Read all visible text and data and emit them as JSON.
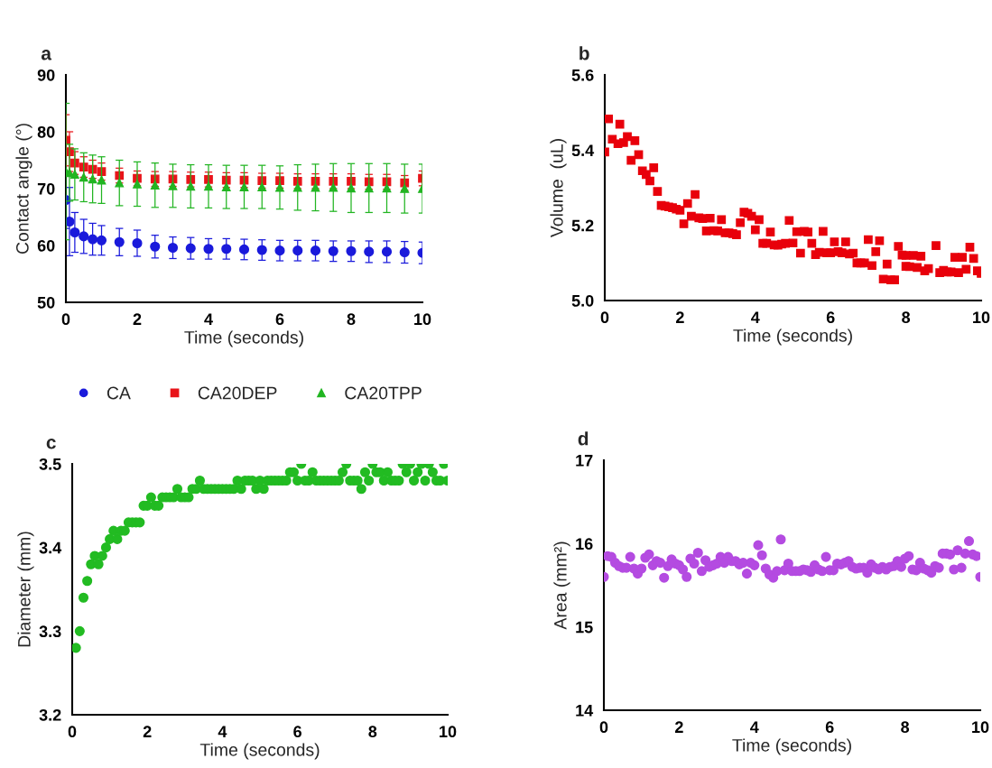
{
  "chart_data": [
    {
      "type": "scatter",
      "title": "a",
      "xlabel": "Time (seconds)",
      "ylabel": "Contact angle (°)",
      "xlim": [
        0,
        10
      ],
      "xticks": [
        0,
        2,
        4,
        6,
        8,
        10
      ],
      "ylim": [
        50,
        90
      ],
      "yticks": [
        50,
        60,
        70,
        80,
        90
      ],
      "grid": false,
      "legend": "bottom",
      "x": [
        0,
        0.1,
        0.25,
        0.5,
        0.75,
        1,
        1.5,
        2,
        2.5,
        3,
        3.5,
        4,
        4.5,
        5,
        5.5,
        6,
        6.5,
        7,
        7.5,
        8,
        8.5,
        9,
        9.5,
        10
      ],
      "series": [
        {
          "name": "CA",
          "color": "#1a1adb",
          "marker": "circle",
          "values": [
            68,
            64.2,
            62.3,
            61.6,
            61.1,
            60.9,
            60.6,
            60.4,
            59.8,
            59.6,
            59.5,
            59.4,
            59.4,
            59.3,
            59.2,
            59.1,
            59.1,
            59.1,
            59.0,
            59.0,
            58.9,
            58.9,
            58.8,
            58.7
          ],
          "errors": [
            5,
            6,
            3.5,
            3,
            2.8,
            2.6,
            2.4,
            2.3,
            2.0,
            1.9,
            1.9,
            1.8,
            1.8,
            1.8,
            1.8,
            1.8,
            1.8,
            1.8,
            1.8,
            1.8,
            1.9,
            1.9,
            1.9,
            1.9
          ]
        },
        {
          "name": "CA20DEP",
          "color": "#e8141a",
          "marker": "square",
          "values": [
            78.5,
            76.5,
            74.5,
            73.8,
            73.4,
            73.0,
            72.3,
            71.8,
            71.7,
            71.7,
            71.6,
            71.6,
            71.5,
            71.5,
            71.4,
            71.4,
            71.3,
            71.3,
            71.3,
            71.3,
            71.2,
            71.2,
            71.0,
            71.8
          ],
          "errors": [
            4.5,
            3.5,
            2,
            1.8,
            1.6,
            1.5,
            1.3,
            1.3,
            1.3,
            1.3,
            1.3,
            1.3,
            1.3,
            1.3,
            1.3,
            1.3,
            1.3,
            1.3,
            1.3,
            1.3,
            1.3,
            1.3,
            1.3,
            1.3
          ]
        },
        {
          "name": "CA20TPP",
          "color": "#22b522",
          "marker": "triangle",
          "values": [
            73,
            72.8,
            72.5,
            72.0,
            71.7,
            71.5,
            71.0,
            70.8,
            70.6,
            70.5,
            70.4,
            70.4,
            70.3,
            70.3,
            70.3,
            70.2,
            70.2,
            70.2,
            70.2,
            70.1,
            70.1,
            70.1,
            70.0,
            70.0
          ],
          "errors": [
            12,
            5,
            4.5,
            4.3,
            4.2,
            4.1,
            4.0,
            3.9,
            3.9,
            3.8,
            3.8,
            3.8,
            3.8,
            3.8,
            3.8,
            3.8,
            4.0,
            4.1,
            4.2,
            4.3,
            4.3,
            4.3,
            4.3,
            4.3
          ]
        }
      ]
    },
    {
      "type": "scatter",
      "title": "b",
      "xlabel": "Time (seconds)",
      "ylabel": "Volume  (uL)",
      "xlim": [
        0,
        10
      ],
      "xticks": [
        0,
        2,
        4,
        6,
        8,
        10
      ],
      "ylim": [
        5.0,
        5.6
      ],
      "yticks": [
        {
          "value": 5.0,
          "label": "5.0"
        },
        {
          "value": 5.2,
          "label": "5.2"
        },
        {
          "value": 5.4,
          "label": "5.4"
        },
        {
          "value": 5.6,
          "label": "5.6"
        }
      ],
      "grid": false,
      "series": [
        {
          "color": "#e8000b",
          "marker": "square",
          "x": [
            0,
            0.1,
            0.2,
            0.35,
            0.4,
            0.5,
            0.6,
            0.7,
            0.8,
            0.9,
            1.0,
            1.1,
            1.2,
            1.3,
            1.4,
            1.5,
            1.6,
            1.7,
            1.8,
            1.9,
            2.0,
            2.1,
            2.2,
            2.3,
            2.4,
            2.5,
            2.6,
            2.7,
            2.8,
            2.9,
            3.0,
            3.1,
            3.2,
            3.3,
            3.4,
            3.5,
            3.6,
            3.7,
            3.8,
            3.9,
            4.0,
            4.1,
            4.2,
            4.3,
            4.4,
            4.5,
            4.6,
            4.7,
            4.8,
            4.9,
            5.0,
            5.1,
            5.2,
            5.3,
            5.4,
            5.5,
            5.6,
            5.7,
            5.8,
            5.9,
            6.0,
            6.1,
            6.2,
            6.3,
            6.4,
            6.5,
            6.6,
            6.7,
            6.8,
            6.9,
            7.0,
            7.1,
            7.2,
            7.3,
            7.4,
            7.5,
            7.6,
            7.7,
            7.8,
            7.9,
            8.0,
            8.0,
            8.1,
            8.2,
            8.3,
            8.4,
            8.5,
            8.6,
            8.8,
            8.9,
            9.0,
            9.1,
            9.2,
            9.3,
            9.4,
            9.5,
            9.6,
            9.7,
            9.8,
            9.9,
            10.0
          ],
          "values": [
            5.395,
            5.483,
            5.429,
            5.417,
            5.469,
            5.42,
            5.436,
            5.373,
            5.425,
            5.388,
            5.345,
            5.335,
            5.318,
            5.353,
            5.29,
            5.253,
            5.251,
            5.249,
            5.247,
            5.243,
            5.24,
            5.204,
            5.258,
            5.224,
            5.282,
            5.22,
            5.218,
            5.185,
            5.219,
            5.186,
            5.185,
            5.215,
            5.18,
            5.18,
            5.178,
            5.175,
            5.207,
            5.235,
            5.232,
            5.224,
            5.188,
            5.215,
            5.152,
            5.152,
            5.182,
            5.148,
            5.147,
            5.15,
            5.152,
            5.213,
            5.153,
            5.183,
            5.126,
            5.184,
            5.182,
            5.152,
            5.122,
            5.128,
            5.184,
            5.127,
            5.127,
            5.156,
            5.13,
            5.127,
            5.156,
            5.124,
            5.126,
            5.1,
            5.1,
            5.1,
            5.162,
            5.093,
            5.13,
            5.159,
            5.057,
            5.097,
            5.055,
            5.055,
            5.144,
            5.121,
            5.12,
            5.091,
            5.09,
            5.12,
            5.088,
            5.118,
            5.079,
            5.085,
            5.146,
            5.074,
            5.08,
            5.076,
            5.076,
            5.115,
            5.074,
            5.115,
            5.083,
            5.142,
            5.112,
            5.079,
            5.072
          ]
        }
      ]
    },
    {
      "type": "scatter",
      "title": "c",
      "xlabel": "Time (seconds)",
      "ylabel": "Diameter (mm)",
      "xlim": [
        0,
        10
      ],
      "xticks": [
        0,
        2,
        4,
        6,
        8,
        10
      ],
      "ylim": [
        3.2,
        3.5
      ],
      "yticks": [
        3.2,
        3.3,
        3.4,
        3.5
      ],
      "grid": false,
      "series": [
        {
          "color": "#22bb22",
          "marker": "circle",
          "x": [
            0.1,
            0.2,
            0.3,
            0.4,
            0.5,
            0.6,
            0.7,
            0.8,
            0.9,
            1.0,
            1.1,
            1.2,
            1.3,
            1.4,
            1.5,
            1.6,
            1.7,
            1.8,
            1.9,
            2.0,
            2.1,
            2.2,
            2.3,
            2.4,
            2.5,
            2.6,
            2.7,
            2.8,
            2.9,
            3.0,
            3.1,
            3.2,
            3.3,
            3.4,
            3.5,
            3.6,
            3.7,
            3.8,
            3.9,
            4.0,
            4.1,
            4.2,
            4.3,
            4.4,
            4.5,
            4.6,
            4.7,
            4.8,
            4.9,
            5.0,
            5.1,
            5.2,
            5.3,
            5.4,
            5.5,
            5.6,
            5.7,
            5.8,
            5.9,
            6.0,
            6.1,
            6.2,
            6.3,
            6.4,
            6.5,
            6.6,
            6.7,
            6.8,
            6.9,
            7.0,
            7.1,
            7.2,
            7.3,
            7.4,
            7.5,
            7.6,
            7.7,
            7.8,
            7.9,
            8.0,
            8.1,
            8.2,
            8.3,
            8.4,
            8.5,
            8.6,
            8.7,
            8.8,
            8.9,
            9.0,
            9.1,
            9.2,
            9.3,
            9.4,
            9.5,
            9.6,
            9.7,
            9.8,
            9.9,
            10.0
          ],
          "values": [
            3.28,
            3.3,
            3.34,
            3.36,
            3.38,
            3.39,
            3.38,
            3.39,
            3.4,
            3.41,
            3.42,
            3.41,
            3.42,
            3.42,
            3.43,
            3.43,
            3.43,
            3.43,
            3.45,
            3.45,
            3.46,
            3.45,
            3.45,
            3.46,
            3.46,
            3.46,
            3.46,
            3.47,
            3.46,
            3.46,
            3.46,
            3.47,
            3.47,
            3.48,
            3.47,
            3.47,
            3.47,
            3.47,
            3.47,
            3.47,
            3.47,
            3.47,
            3.47,
            3.48,
            3.47,
            3.48,
            3.48,
            3.48,
            3.47,
            3.48,
            3.47,
            3.48,
            3.48,
            3.48,
            3.48,
            3.48,
            3.48,
            3.49,
            3.49,
            3.48,
            3.5,
            3.48,
            3.48,
            3.49,
            3.48,
            3.48,
            3.48,
            3.48,
            3.48,
            3.48,
            3.48,
            3.49,
            3.5,
            3.48,
            3.48,
            3.48,
            3.47,
            3.49,
            3.48,
            3.5,
            3.49,
            3.49,
            3.48,
            3.49,
            3.48,
            3.48,
            3.48,
            3.5,
            3.49,
            3.5,
            3.48,
            3.49,
            3.5,
            3.48,
            3.5,
            3.49,
            3.48,
            3.48,
            3.5,
            3.48
          ]
        }
      ]
    },
    {
      "type": "scatter",
      "title": "d",
      "xlabel": "Time (seconds)",
      "ylabel": "Area (mm²)",
      "xlim": [
        0,
        10
      ],
      "xticks": [
        0,
        2,
        4,
        6,
        8,
        10
      ],
      "ylim": [
        14,
        17
      ],
      "yticks": [
        14,
        15,
        16,
        17
      ],
      "grid": false,
      "series": [
        {
          "color": "#b44be1",
          "marker": "circle",
          "x": [
            0,
            0.1,
            0.2,
            0.3,
            0.4,
            0.5,
            0.6,
            0.7,
            0.8,
            0.9,
            1.0,
            1.1,
            1.2,
            1.3,
            1.4,
            1.5,
            1.6,
            1.7,
            1.8,
            1.9,
            2.0,
            2.1,
            2.2,
            2.3,
            2.4,
            2.5,
            2.6,
            2.7,
            2.8,
            2.9,
            3.0,
            3.1,
            3.2,
            3.3,
            3.4,
            3.5,
            3.6,
            3.7,
            3.8,
            3.9,
            4.0,
            4.1,
            4.2,
            4.3,
            4.4,
            4.5,
            4.6,
            4.7,
            4.8,
            4.9,
            5.0,
            5.1,
            5.2,
            5.3,
            5.4,
            5.5,
            5.6,
            5.7,
            5.8,
            5.9,
            6.0,
            6.1,
            6.2,
            6.3,
            6.4,
            6.5,
            6.6,
            6.7,
            6.8,
            6.9,
            7.0,
            7.1,
            7.2,
            7.3,
            7.4,
            7.5,
            7.6,
            7.7,
            7.8,
            7.9,
            8.0,
            8.1,
            8.2,
            8.3,
            8.4,
            8.5,
            8.6,
            8.7,
            8.8,
            8.9,
            9.0,
            9.1,
            9.2,
            9.3,
            9.4,
            9.5,
            9.6,
            9.7,
            9.8,
            9.9,
            10.0
          ],
          "values": [
            15.6,
            15.85,
            15.84,
            15.77,
            15.73,
            15.71,
            15.71,
            15.84,
            15.7,
            15.64,
            15.7,
            15.83,
            15.87,
            15.74,
            15.79,
            15.77,
            15.59,
            15.73,
            15.81,
            15.76,
            15.74,
            15.69,
            15.6,
            15.82,
            15.76,
            15.89,
            15.67,
            15.8,
            15.72,
            15.74,
            15.76,
            15.84,
            15.77,
            15.84,
            15.79,
            15.79,
            15.75,
            15.77,
            15.64,
            15.77,
            15.74,
            15.98,
            15.86,
            15.7,
            15.63,
            15.59,
            15.67,
            16.05,
            15.68,
            15.76,
            15.67,
            15.67,
            15.67,
            15.69,
            15.68,
            15.66,
            15.74,
            15.69,
            15.67,
            15.84,
            15.68,
            15.68,
            15.76,
            15.75,
            15.77,
            15.79,
            15.72,
            15.7,
            15.71,
            15.71,
            15.65,
            15.75,
            15.71,
            15.69,
            15.72,
            15.69,
            15.72,
            15.73,
            15.79,
            15.72,
            15.82,
            15.85,
            15.69,
            15.68,
            15.77,
            15.7,
            15.68,
            15.65,
            15.73,
            15.71,
            15.88,
            15.88,
            15.87,
            15.69,
            15.92,
            15.71,
            15.88,
            16.03,
            15.87,
            15.85,
            15.6
          ]
        }
      ]
    }
  ]
}
